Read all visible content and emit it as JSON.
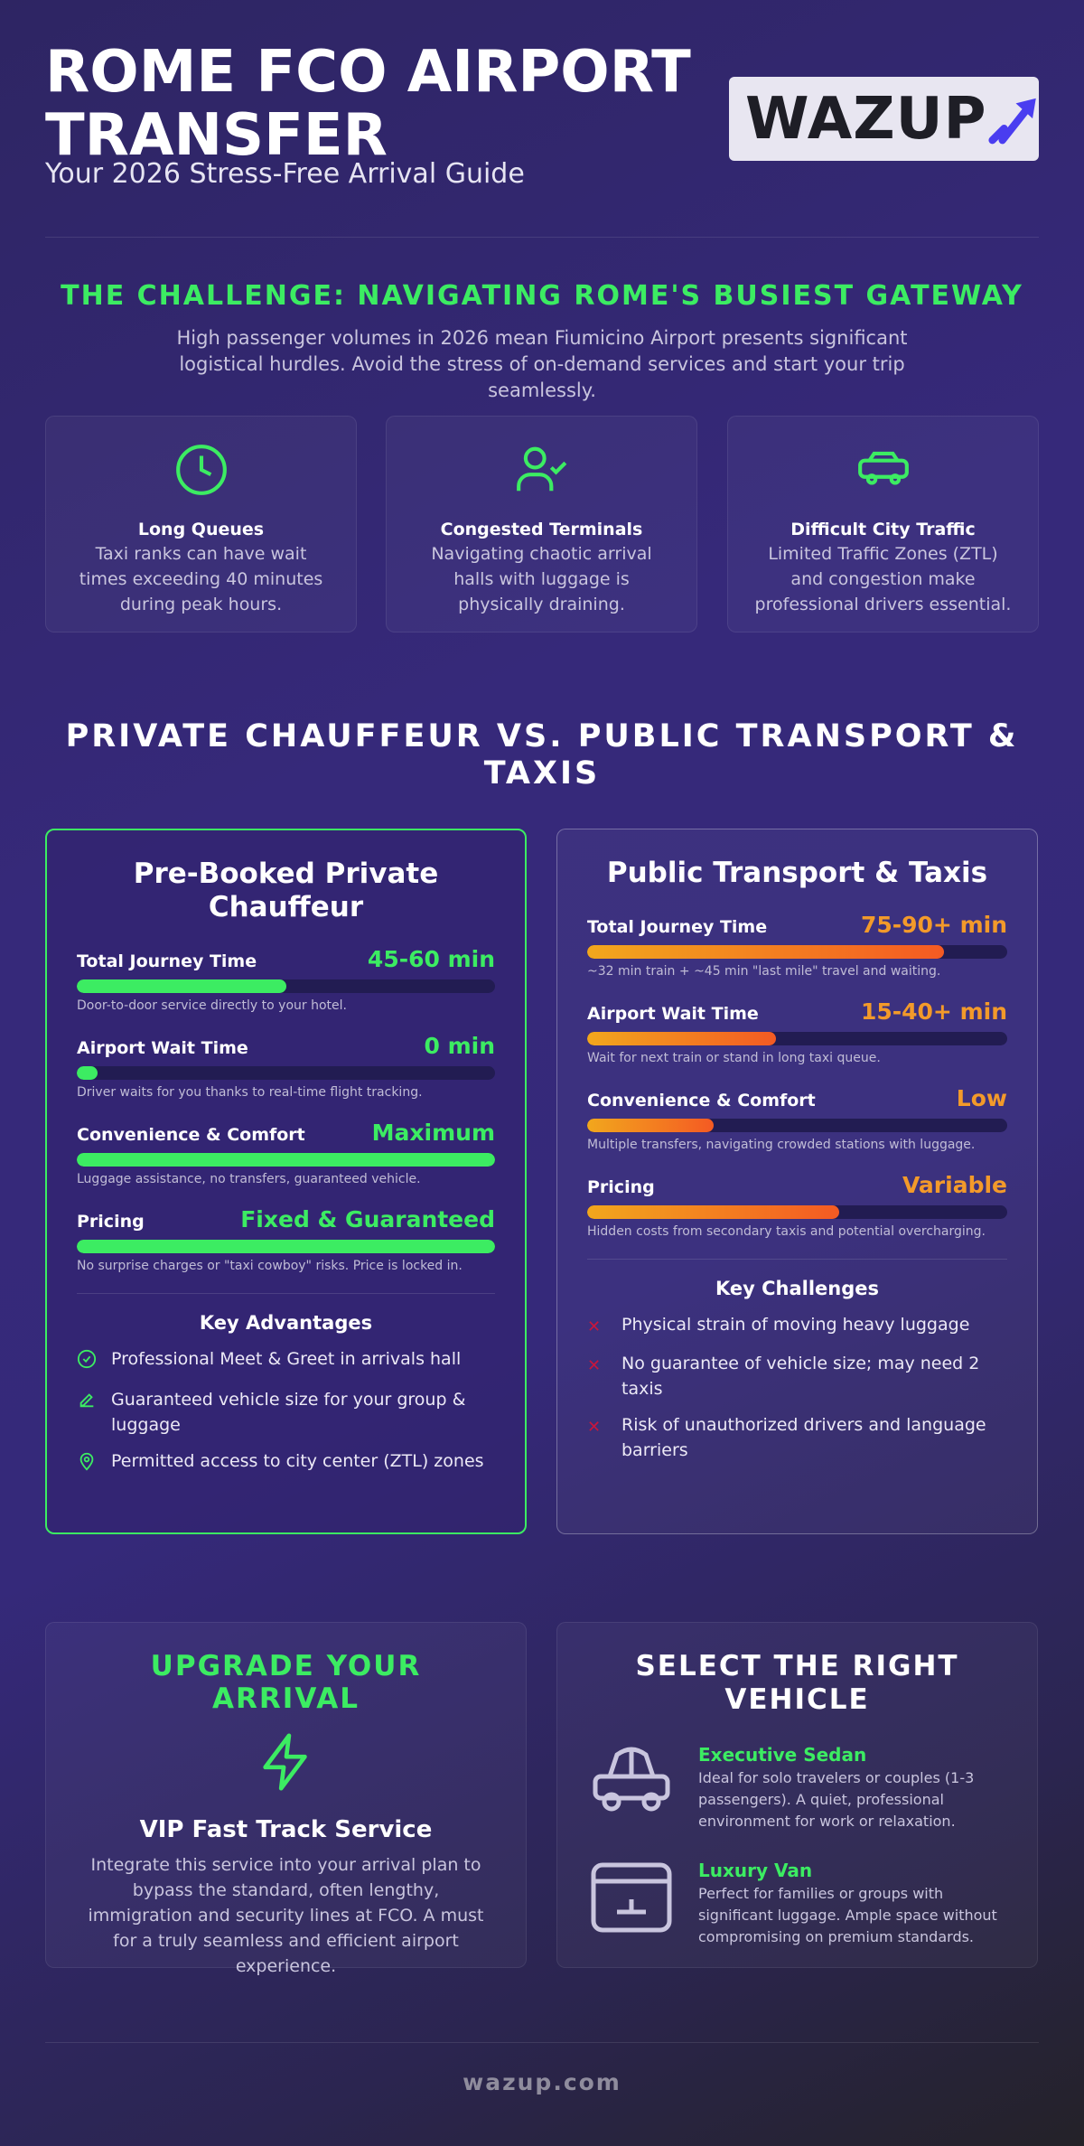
{
  "header": {
    "title": "ROME FCO AIRPORT TRANSFER",
    "subtitle": "Your 2026 Stress-Free Arrival Guide",
    "logo": "WAZUP"
  },
  "challenge": {
    "heading": "THE CHALLENGE: NAVIGATING ROME'S BUSIEST GATEWAY",
    "intro": "High passenger volumes in 2026 mean Fiumicino Airport presents significant logistical hurdles. Avoid the stress of on-demand services and start your trip seamlessly.",
    "cards": [
      {
        "title": "Long Queues",
        "text": "Taxi ranks can have wait times exceeding 40 minutes during peak hours."
      },
      {
        "title": "Congested Terminals",
        "text": "Navigating chaotic arrival halls with luggage is physically draining."
      },
      {
        "title": "Difficult City Traffic",
        "text": "Limited Traffic Zones (ZTL) and congestion make professional drivers essential."
      }
    ]
  },
  "comparison": {
    "heading": "PRIVATE CHAUFFEUR VS. PUBLIC TRANSPORT & TAXIS",
    "private": {
      "title": "Pre-Booked Private Chauffeur",
      "metrics": [
        {
          "label": "Total Journey Time",
          "value": "45-60 min",
          "note": "Door-to-door service directly to your hotel."
        },
        {
          "label": "Airport Wait Time",
          "value": "0 min",
          "note": "Driver waits for you thanks to real-time flight tracking."
        },
        {
          "label": "Convenience & Comfort",
          "value": "Maximum",
          "note": "Luggage assistance, no transfers, guaranteed vehicle."
        },
        {
          "label": "Pricing",
          "value": "Fixed & Guaranteed",
          "note": "No surprise charges or \"taxi cowboy\" risks. Price is locked in."
        }
      ],
      "list_title": "Key Advantages",
      "list": [
        "Professional Meet & Greet in arrivals hall",
        "Guaranteed vehicle size for your group & luggage",
        "Permitted access to city center (ZTL) zones"
      ]
    },
    "public": {
      "title": "Public Transport & Taxis",
      "metrics": [
        {
          "label": "Total Journey Time",
          "value": "75-90+ min",
          "note": "~32 min train + ~45 min \"last mile\" travel and waiting."
        },
        {
          "label": "Airport Wait Time",
          "value": "15-40+ min",
          "note": "Wait for next train or stand in long taxi queue."
        },
        {
          "label": "Convenience & Comfort",
          "value": "Low",
          "note": "Multiple transfers, navigating crowded stations with luggage."
        },
        {
          "label": "Pricing",
          "value": "Variable",
          "note": "Hidden costs from secondary taxis and potential overcharging."
        }
      ],
      "list_title": "Key Challenges",
      "list": [
        "Physical strain of moving heavy luggage",
        "No guarantee of vehicle size; may need 2 taxis",
        "Risk of unauthorized drivers and language barriers"
      ]
    }
  },
  "upgrade": {
    "heading": "UPGRADE YOUR ARRIVAL",
    "service": "VIP Fast Track Service",
    "text": "Integrate this service into your arrival plan to bypass the standard, often lengthy, immigration and security lines at FCO. A must for a truly seamless and efficient airport experience."
  },
  "vehicles": {
    "heading": "SELECT THE RIGHT VEHICLE",
    "items": [
      {
        "name": "Executive Sedan",
        "text": "Ideal for solo travelers or couples (1-3 passengers). A quiet, professional environment for work or relaxation."
      },
      {
        "name": "Luxury Van",
        "text": "Perfect for families or groups with significant luggage. Ample space without compromising on premium standards."
      }
    ]
  },
  "footer": "wazup.com"
}
